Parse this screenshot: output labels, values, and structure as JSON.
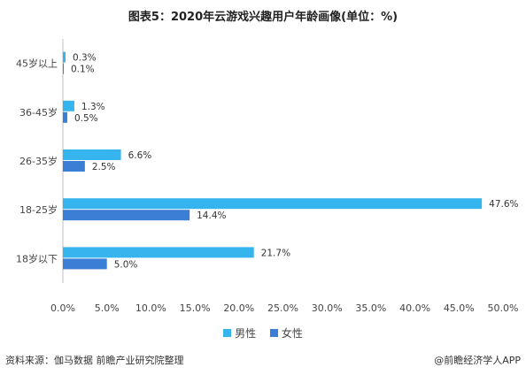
{
  "title": "图表5：2020年云游戏兴趣用户年龄画像(单位：%)",
  "source": "资料来源：伽马数据 前瞻产业研究院整理",
  "brand": "@前瞻经济学人APP",
  "chart_data": {
    "type": "bar",
    "orientation": "horizontal",
    "categories": [
      "45岁以上",
      "36-45岁",
      "26-35岁",
      "18-25岁",
      "18岁以下"
    ],
    "series": [
      {
        "name": "男性",
        "color": "#36b4ee",
        "values": [
          0.3,
          1.3,
          6.6,
          47.6,
          21.7
        ]
      },
      {
        "name": "女性",
        "color": "#3a7ed6",
        "values": [
          0.1,
          0.5,
          2.5,
          14.4,
          5.0
        ]
      }
    ],
    "xlim": [
      0,
      50
    ],
    "xticks": [
      "0.0%",
      "5.0%",
      "10.0%",
      "15.0%",
      "20.0%",
      "25.0%",
      "30.0%",
      "35.0%",
      "40.0%",
      "45.0%",
      "50.0%"
    ],
    "xtick_values": [
      0,
      5,
      10,
      15,
      20,
      25,
      30,
      35,
      40,
      45,
      50
    ],
    "value_suffix": "%",
    "legend_position": "bottom",
    "grid": false
  }
}
